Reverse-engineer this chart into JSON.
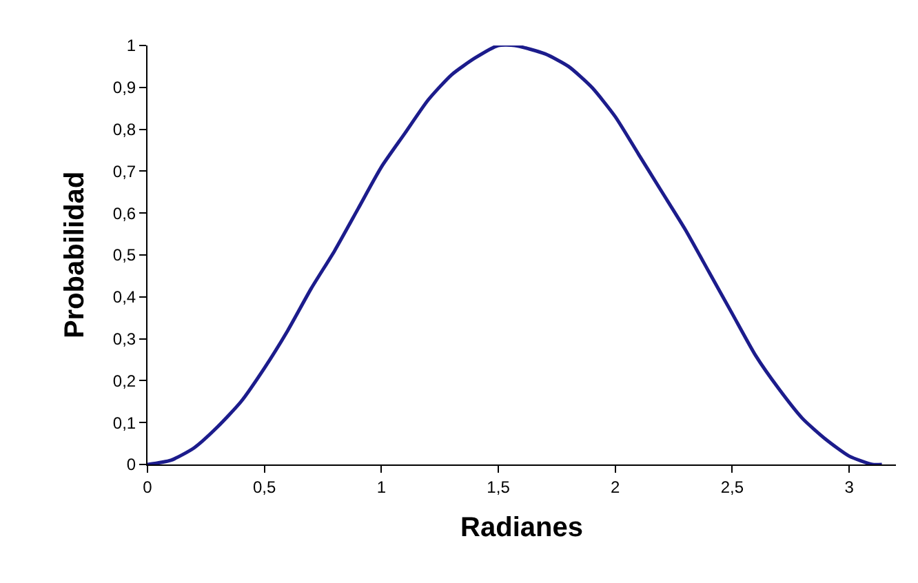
{
  "chart_data": {
    "type": "line",
    "xlabel": "Radianes",
    "ylabel": "Probabilidad",
    "x": [
      0,
      0.1,
      0.2,
      0.3,
      0.4,
      0.5,
      0.6,
      0.7,
      0.8,
      0.9,
      1.0,
      1.1,
      1.2,
      1.3,
      1.4,
      1.5,
      1.57,
      1.7,
      1.8,
      1.9,
      2.0,
      2.1,
      2.2,
      2.3,
      2.4,
      2.5,
      2.6,
      2.7,
      2.8,
      2.9,
      3.0,
      3.1,
      3.14
    ],
    "series": [
      {
        "color": "#1c1c8c",
        "values": [
          0,
          0.01,
          0.04,
          0.09,
          0.15,
          0.23,
          0.32,
          0.42,
          0.51,
          0.61,
          0.71,
          0.79,
          0.87,
          0.93,
          0.97,
          1.0,
          1.0,
          0.98,
          0.95,
          0.9,
          0.83,
          0.74,
          0.65,
          0.56,
          0.46,
          0.36,
          0.26,
          0.18,
          0.11,
          0.06,
          0.02,
          0.0,
          0
        ]
      }
    ],
    "xlim": [
      0,
      3.2
    ],
    "ylim": [
      0,
      1
    ],
    "xticks": [
      0,
      {
        "value": 0.5,
        "label": "0,5"
      },
      1,
      {
        "value": 1.5,
        "label": "1,5"
      },
      2,
      {
        "value": 2.5,
        "label": "2,5"
      },
      3
    ],
    "yticks": [
      0,
      {
        "value": 0.1,
        "label": "0,1"
      },
      {
        "value": 0.2,
        "label": "0,2"
      },
      {
        "value": 0.3,
        "label": "0,3"
      },
      {
        "value": 0.4,
        "label": "0,4"
      },
      {
        "value": 0.5,
        "label": "0,5"
      },
      {
        "value": 0.6,
        "label": "0,6"
      },
      {
        "value": 0.7,
        "label": "0,7"
      },
      {
        "value": 0.8,
        "label": "0,8"
      },
      {
        "value": 0.9,
        "label": "0,9"
      },
      1
    ],
    "marker": "none",
    "line_style": "solid"
  }
}
